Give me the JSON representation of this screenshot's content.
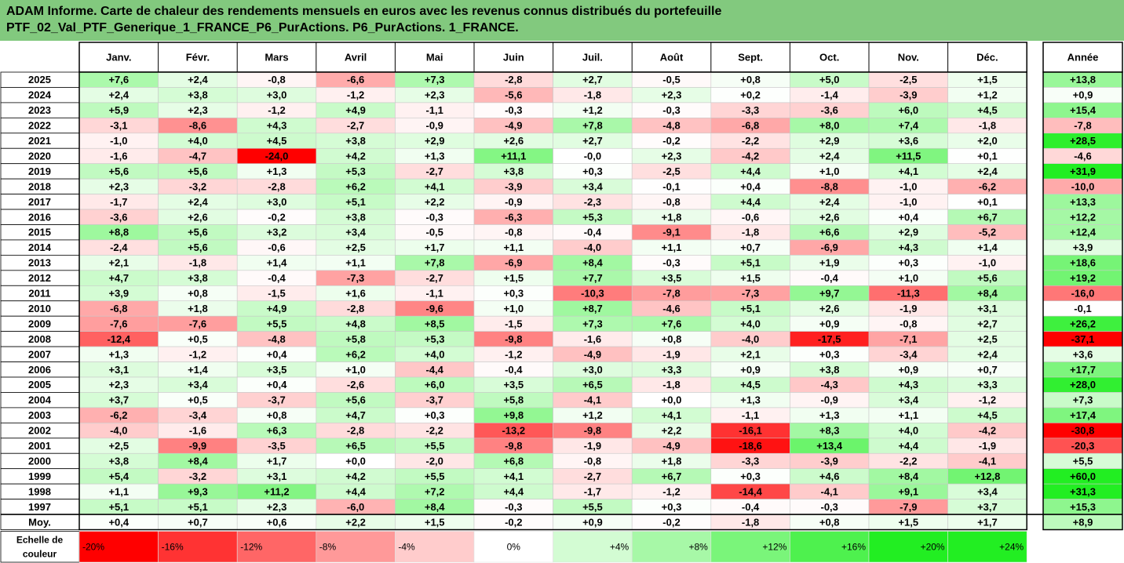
{
  "chart_data": {
    "type": "heatmap",
    "title": "ADAM Informe. Carte de chaleur des rendements mensuels en euros avec les revenus connus distribués du portefeuille",
    "subtitle": "PTF_02_Val_PTF_Generique_1_FRANCE_P6_PurActions. P6_PurActions. 1_FRANCE.",
    "columns": [
      "Janv.",
      "Févr.",
      "Mars",
      "Avril",
      "Mai",
      "Juin",
      "Juil.",
      "Août",
      "Sept.",
      "Oct.",
      "Nov.",
      "Déc."
    ],
    "year_label": "Année",
    "rows": [
      {
        "year": "2025",
        "values": [
          "+7,6",
          "+2,4",
          "-0,8",
          "-6,6",
          "+7,3",
          "-2,8",
          "+2,7",
          "-0,5",
          "+0,8",
          "+5,0",
          "-2,5",
          "+1,5"
        ],
        "annual": "+13,8"
      },
      {
        "year": "2024",
        "values": [
          "+2,4",
          "+3,8",
          "+3,0",
          "-1,2",
          "+2,3",
          "-5,6",
          "-1,8",
          "+2,3",
          "+0,2",
          "-1,4",
          "-3,9",
          "+1,2"
        ],
        "annual": "+0,9"
      },
      {
        "year": "2023",
        "values": [
          "+5,9",
          "+2,3",
          "-1,2",
          "+4,9",
          "-1,1",
          "-0,3",
          "+1,2",
          "-0,3",
          "-3,3",
          "-3,6",
          "+6,0",
          "+4,5"
        ],
        "annual": "+15,4"
      },
      {
        "year": "2022",
        "values": [
          "-3,1",
          "-8,6",
          "+4,3",
          "-2,7",
          "-0,9",
          "-4,9",
          "+7,8",
          "-4,8",
          "-6,8",
          "+8,0",
          "+7,4",
          "-1,8"
        ],
        "annual": "-7,8"
      },
      {
        "year": "2021",
        "values": [
          "-1,0",
          "+4,0",
          "+4,5",
          "+3,8",
          "+2,9",
          "+2,6",
          "+2,7",
          "-0,2",
          "-2,2",
          "+2,9",
          "+3,6",
          "+2,0"
        ],
        "annual": "+28,5"
      },
      {
        "year": "2020",
        "values": [
          "-1,6",
          "-4,7",
          "-24,0",
          "+4,2",
          "+1,3",
          "+11,1",
          "-0,0",
          "+2,3",
          "-4,2",
          "+2,4",
          "+11,5",
          "+0,1"
        ],
        "annual": "-4,6"
      },
      {
        "year": "2019",
        "values": [
          "+5,6",
          "+5,6",
          "+1,3",
          "+5,3",
          "-2,7",
          "+3,8",
          "+0,3",
          "-2,5",
          "+4,4",
          "+1,0",
          "+4,1",
          "+2,4"
        ],
        "annual": "+31,9"
      },
      {
        "year": "2018",
        "values": [
          "+2,3",
          "-3,2",
          "-2,8",
          "+6,2",
          "+4,1",
          "-3,9",
          "+3,4",
          "-0,1",
          "+0,4",
          "-8,8",
          "-1,0",
          "-6,2"
        ],
        "annual": "-10,0"
      },
      {
        "year": "2017",
        "values": [
          "-1,7",
          "+2,4",
          "+3,0",
          "+5,1",
          "+2,2",
          "-0,9",
          "-2,3",
          "-0,8",
          "+4,4",
          "+2,4",
          "-1,0",
          "+0,1"
        ],
        "annual": "+13,3"
      },
      {
        "year": "2016",
        "values": [
          "-3,6",
          "+2,6",
          "-0,2",
          "+3,8",
          "-0,3",
          "-6,3",
          "+5,3",
          "+1,8",
          "-0,6",
          "+2,6",
          "+0,4",
          "+6,7"
        ],
        "annual": "+12,2"
      },
      {
        "year": "2015",
        "values": [
          "+8,8",
          "+5,6",
          "+3,2",
          "+3,4",
          "-0,5",
          "-0,8",
          "-0,4",
          "-9,1",
          "-1,8",
          "+6,6",
          "+2,9",
          "-5,2"
        ],
        "annual": "+12,4"
      },
      {
        "year": "2014",
        "values": [
          "-2,4",
          "+5,6",
          "-0,6",
          "+2,5",
          "+1,7",
          "+1,1",
          "-4,0",
          "+1,1",
          "+0,7",
          "-6,9",
          "+4,3",
          "+1,4"
        ],
        "annual": "+3,9"
      },
      {
        "year": "2013",
        "values": [
          "+2,1",
          "-1,8",
          "+1,4",
          "+1,1",
          "+7,8",
          "-6,9",
          "+8,4",
          "-0,3",
          "+5,1",
          "+1,9",
          "+0,3",
          "-1,0"
        ],
        "annual": "+18,6"
      },
      {
        "year": "2012",
        "values": [
          "+4,7",
          "+3,8",
          "-0,4",
          "-7,3",
          "-2,7",
          "+1,5",
          "+7,7",
          "+3,5",
          "+1,5",
          "-0,4",
          "+1,0",
          "+5,6"
        ],
        "annual": "+19,2"
      },
      {
        "year": "2011",
        "values": [
          "+3,9",
          "+0,8",
          "-1,5",
          "+1,6",
          "-1,1",
          "+0,3",
          "-10,3",
          "-7,8",
          "-7,3",
          "+9,7",
          "-11,3",
          "+8,4"
        ],
        "annual": "-16,0"
      },
      {
        "year": "2010",
        "values": [
          "-6,8",
          "+1,8",
          "+4,9",
          "-2,8",
          "-9,6",
          "+1,0",
          "+8,7",
          "-4,6",
          "+5,1",
          "+2,6",
          "-1,9",
          "+3,1"
        ],
        "annual": "-0,1"
      },
      {
        "year": "2009",
        "values": [
          "-7,6",
          "-7,6",
          "+5,5",
          "+4,8",
          "+8,5",
          "-1,5",
          "+7,3",
          "+7,6",
          "+4,0",
          "+0,9",
          "-0,8",
          "+2,7"
        ],
        "annual": "+26,2"
      },
      {
        "year": "2008",
        "values": [
          "-12,4",
          "+0,5",
          "-4,8",
          "+5,8",
          "+5,3",
          "-9,8",
          "-1,6",
          "+0,8",
          "-4,0",
          "-17,5",
          "-7,1",
          "+2,5"
        ],
        "annual": "-37,1"
      },
      {
        "year": "2007",
        "values": [
          "+1,3",
          "-1,2",
          "+0,4",
          "+6,2",
          "+4,0",
          "-1,2",
          "-4,9",
          "-1,9",
          "+2,1",
          "+0,3",
          "-3,4",
          "+2,4"
        ],
        "annual": "+3,6"
      },
      {
        "year": "2006",
        "values": [
          "+3,1",
          "+1,4",
          "+3,5",
          "+1,0",
          "-4,4",
          "-0,4",
          "+3,0",
          "+3,3",
          "+0,9",
          "+3,8",
          "+0,9",
          "+0,7"
        ],
        "annual": "+17,7"
      },
      {
        "year": "2005",
        "values": [
          "+2,3",
          "+3,4",
          "+0,4",
          "-2,6",
          "+6,0",
          "+3,5",
          "+6,5",
          "-1,8",
          "+4,5",
          "-4,3",
          "+4,3",
          "+3,3"
        ],
        "annual": "+28,0"
      },
      {
        "year": "2004",
        "values": [
          "+3,7",
          "+0,5",
          "-3,7",
          "+5,6",
          "-3,7",
          "+5,8",
          "-4,1",
          "+0,0",
          "+1,3",
          "-0,9",
          "+3,4",
          "-1,2"
        ],
        "annual": "+7,3"
      },
      {
        "year": "2003",
        "values": [
          "-6,2",
          "-3,4",
          "+0,8",
          "+4,7",
          "+0,3",
          "+9,8",
          "+1,2",
          "+4,1",
          "-1,1",
          "+1,3",
          "+1,1",
          "+4,5"
        ],
        "annual": "+17,4"
      },
      {
        "year": "2002",
        "values": [
          "-4,0",
          "-1,6",
          "+6,3",
          "-2,8",
          "-2,2",
          "-13,2",
          "-9,8",
          "+2,2",
          "-16,1",
          "+8,3",
          "+4,0",
          "-4,2"
        ],
        "annual": "-30,8"
      },
      {
        "year": "2001",
        "values": [
          "+2,5",
          "-9,9",
          "-3,5",
          "+6,5",
          "+5,5",
          "-9,8",
          "-1,9",
          "-4,9",
          "-18,6",
          "+13,4",
          "+4,4",
          "-1,9"
        ],
        "annual": "-20,3"
      },
      {
        "year": "2000",
        "values": [
          "+3,8",
          "+8,4",
          "+1,7",
          "+0,0",
          "-2,0",
          "+6,8",
          "-0,8",
          "+1,8",
          "-3,3",
          "-3,9",
          "-2,2",
          "-4,1"
        ],
        "annual": "+5,5"
      },
      {
        "year": "1999",
        "values": [
          "+5,4",
          "-3,2",
          "+3,1",
          "+4,2",
          "+5,5",
          "+4,1",
          "-2,7",
          "+6,7",
          "+0,3",
          "+4,6",
          "+8,4",
          "+12,8"
        ],
        "annual": "+60,0"
      },
      {
        "year": "1998",
        "values": [
          "+1,1",
          "+9,3",
          "+11,2",
          "+4,4",
          "+7,2",
          "+4,4",
          "-1,7",
          "-1,2",
          "-14,4",
          "-4,1",
          "+9,1",
          "+3,4"
        ],
        "annual": "+31,3"
      },
      {
        "year": "1997",
        "values": [
          "+5,1",
          "+5,1",
          "+2,3",
          "-6,0",
          "+8,4",
          "-0,3",
          "+5,5",
          "+0,3",
          "-0,4",
          "-0,3",
          "-7,9",
          "+3,7"
        ],
        "annual": "+15,3"
      }
    ],
    "average": {
      "label": "Moy.",
      "values": [
        "+0,4",
        "+0,7",
        "+0,6",
        "+2,2",
        "+1,5",
        "-0,2",
        "+0,9",
        "-0,2",
        "-1,8",
        "+0,8",
        "+1,5",
        "+1,7"
      ],
      "annual": "+8,9"
    },
    "scale": {
      "label_line1": "Echelle de",
      "label_line2": "couleur",
      "stops": [
        "-20%",
        "-16%",
        "-12%",
        "-8%",
        "-4%",
        "0%",
        "+4%",
        "+8%",
        "+12%",
        "+16%",
        "+20%",
        "+24%"
      ],
      "stop_values": [
        -20,
        -16,
        -12,
        -8,
        -4,
        0,
        4,
        8,
        12,
        16,
        20,
        24
      ]
    },
    "colors": {
      "negative": "#ff0000",
      "positive": "#22ee22",
      "neutral": "#ffffff",
      "banner": "#82c97e"
    }
  }
}
